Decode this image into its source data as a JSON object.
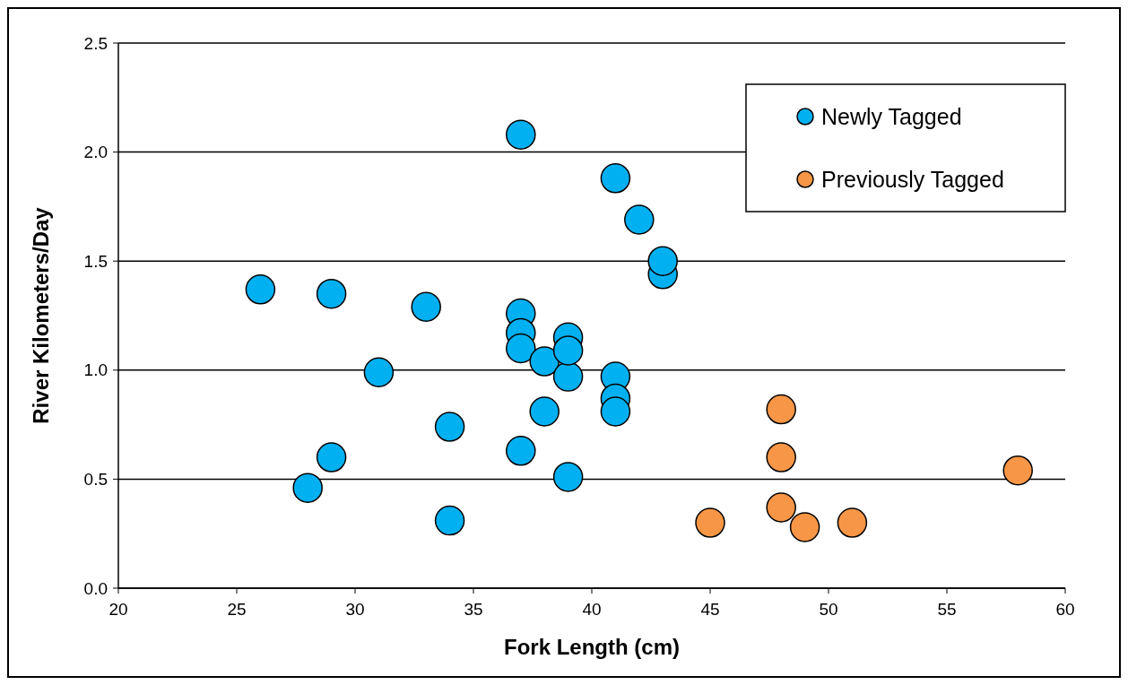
{
  "chart_data": {
    "type": "scatter",
    "xlabel": "Fork Length (cm)",
    "ylabel": "River Kilometers/Day",
    "xlim": [
      20,
      60
    ],
    "xticks": [
      20,
      25,
      30,
      35,
      40,
      45,
      50,
      55,
      60
    ],
    "ylim": [
      0,
      2.5
    ],
    "yticks": [
      {
        "value": 0,
        "label": "0.0"
      },
      {
        "value": 0.5,
        "label": "0.5"
      },
      {
        "value": 1,
        "label": "1.0"
      },
      {
        "value": 1.5,
        "label": "1.5"
      },
      {
        "value": 2,
        "label": "2.0"
      },
      {
        "value": 2.5,
        "label": "2.5"
      }
    ],
    "grid": "y",
    "legend": "top right",
    "marker": "circle",
    "series": [
      {
        "name": "Newly Tagged",
        "color": "#00b0f0",
        "x": [
          26,
          29,
          29,
          28,
          31,
          33,
          34,
          34,
          37,
          37,
          37,
          37,
          37,
          38,
          38,
          39,
          39,
          39,
          41,
          41,
          41,
          41,
          42,
          43,
          43,
          39
        ],
        "values": [
          1.37,
          1.35,
          0.6,
          0.46,
          0.99,
          1.29,
          0.74,
          0.31,
          2.08,
          1.26,
          1.17,
          1.1,
          0.63,
          1.04,
          0.81,
          1.15,
          0.97,
          0.51,
          1.88,
          0.97,
          0.87,
          0.81,
          1.69,
          1.44,
          1.5,
          1.09
        ]
      },
      {
        "name": "Previously Tagged",
        "color": "#f79646",
        "x": [
          45,
          48,
          48,
          48,
          49,
          51,
          58
        ],
        "values": [
          0.3,
          0.82,
          0.6,
          0.37,
          0.28,
          0.3,
          0.54
        ]
      }
    ]
  }
}
